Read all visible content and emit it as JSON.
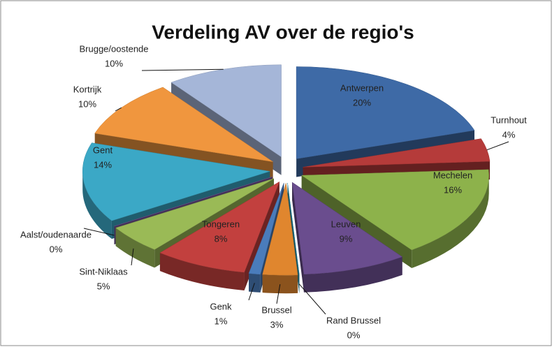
{
  "chart_data": {
    "type": "pie",
    "title": "Verdeling AV over de regio's",
    "categories": [
      "Antwerpen",
      "Turnhout",
      "Mechelen",
      "Leuven",
      "Rand Brussel",
      "Brussel",
      "Genk",
      "Tongeren",
      "Sint-Niklaas",
      "Aalst/oudenaarde",
      "Gent",
      "Kortrijk",
      "Brugge/oostende"
    ],
    "values": [
      20,
      4,
      16,
      9,
      0,
      3,
      1,
      8,
      5,
      0,
      14,
      10,
      10
    ],
    "value_labels": [
      "20%",
      "4%",
      "16%",
      "9%",
      "0%",
      "3%",
      "1%",
      "8%",
      "5%",
      "0%",
      "14%",
      "10%",
      "10%"
    ],
    "colors": [
      "#3e6aa6",
      "#b53b3a",
      "#8db24b",
      "#6a4d8e",
      "#2f9bb3",
      "#e0862e",
      "#4a7cbb",
      "#c2403e",
      "#9aba56",
      "#7a5aa0",
      "#3ba8c6",
      "#f0963e",
      "#a5b6d8"
    ]
  }
}
